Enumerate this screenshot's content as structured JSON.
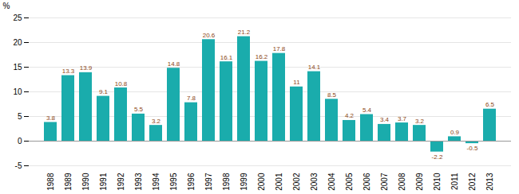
{
  "chart_data": {
    "type": "bar",
    "ylabel": "%",
    "categories": [
      "1988",
      "1989",
      "1990",
      "1991",
      "1992",
      "1993",
      "1994",
      "1995",
      "1996",
      "1997",
      "1998",
      "1999",
      "2000",
      "2001",
      "2002",
      "2003",
      "2004",
      "2005",
      "2006",
      "2007",
      "2008",
      "2009",
      "2010",
      "2011",
      "2012",
      "2013"
    ],
    "values": [
      3.8,
      13.3,
      13.9,
      9.1,
      10.8,
      5.5,
      3.2,
      14.8,
      7.8,
      20.6,
      16.1,
      21.2,
      16.2,
      17.8,
      11.0,
      14.1,
      8.5,
      4.2,
      5.4,
      3.4,
      3.7,
      3.2,
      -2.2,
      0.9,
      -0.5,
      6.5
    ],
    "color": "#1aacac",
    "ylim": [
      -5,
      25
    ],
    "yticks": [
      -5,
      0,
      5,
      10,
      15,
      20,
      25
    ],
    "grid": true,
    "data_labels": true
  }
}
